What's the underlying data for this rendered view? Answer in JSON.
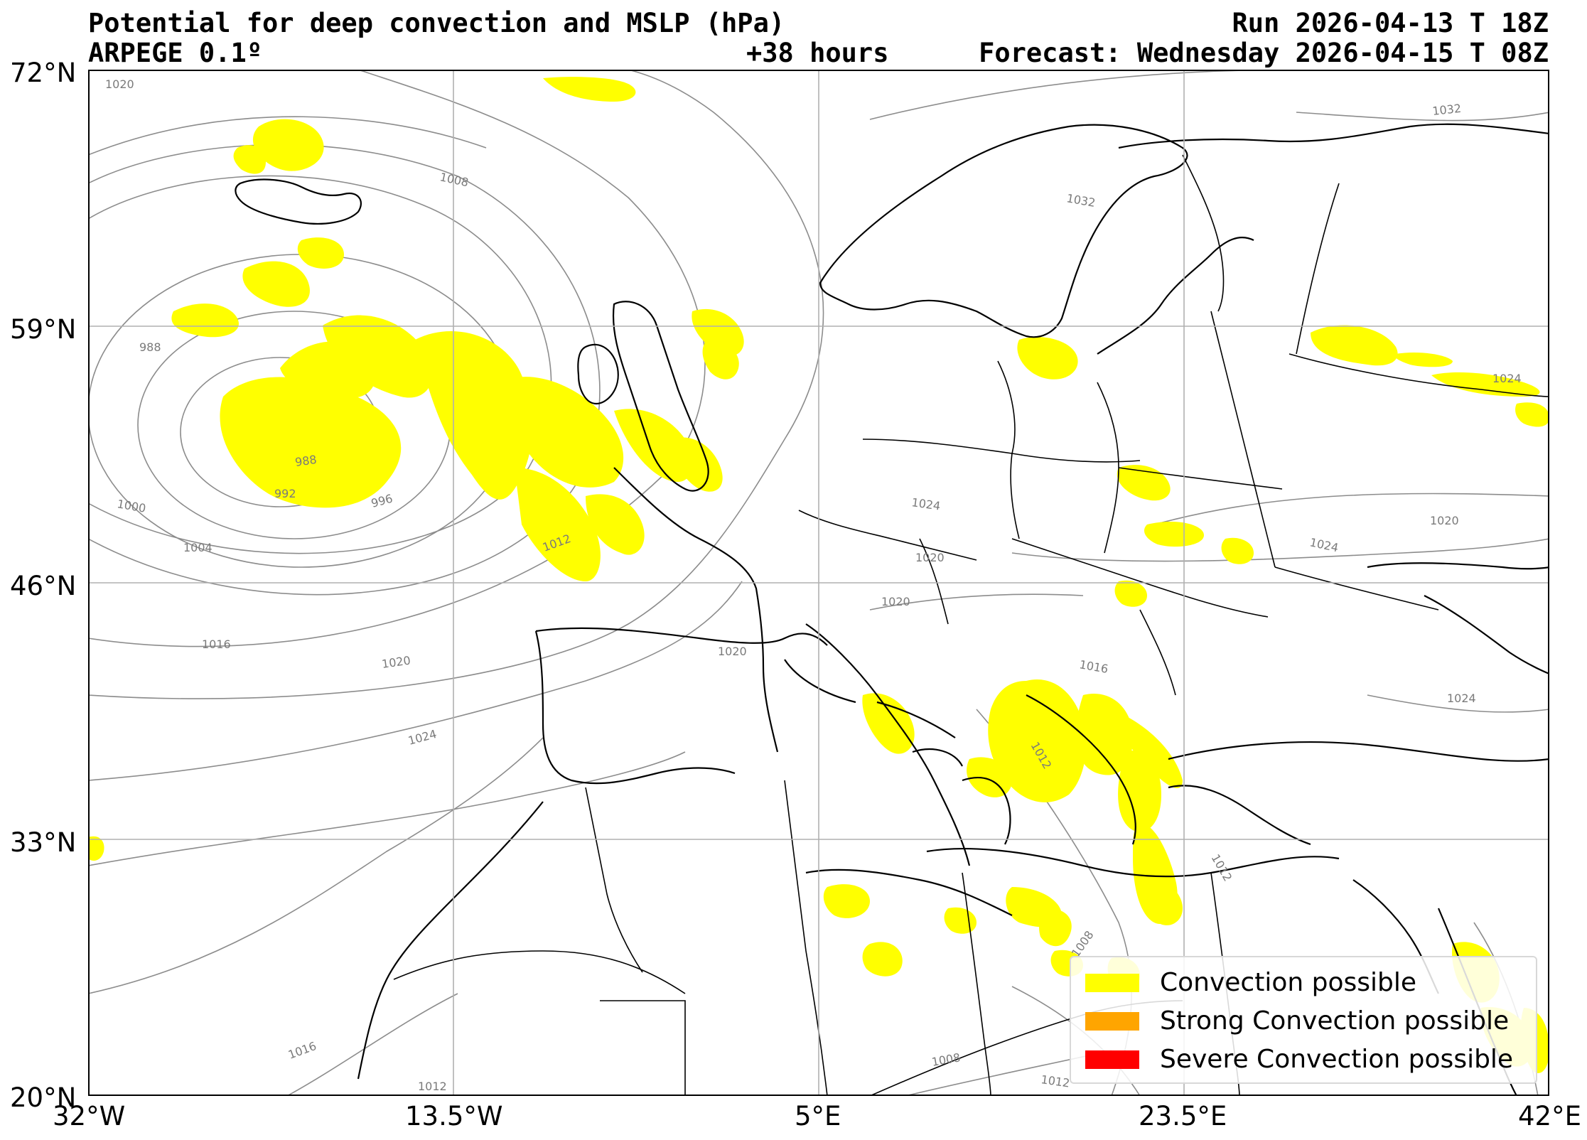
{
  "header": {
    "title_left": "Potential for deep convection and MSLP (hPa)",
    "subtitle_left": "ARPEGE 0.1º",
    "lead_time": "+38 hours",
    "run": "Run 2026-04-13 T 18Z",
    "forecast": "Forecast: Wednesday 2026-04-15 T 08Z"
  },
  "axes": {
    "lat_ticks": [
      "72°N",
      "59°N",
      "46°N",
      "33°N",
      "20°N"
    ],
    "lon_ticks": [
      "32°W",
      "13.5°W",
      "5°E",
      "23.5°E",
      "42°E"
    ]
  },
  "isobar_labels": [
    "1020",
    "1008",
    "988",
    "988",
    "992",
    "996",
    "1000",
    "1004",
    "1012",
    "1016",
    "1020",
    "1024",
    "1016",
    "1012",
    "1032",
    "1032",
    "1024",
    "1024",
    "1020",
    "1024",
    "1020",
    "1020",
    "1020",
    "1016",
    "1024",
    "1012",
    "1012",
    "1008",
    "1008",
    "1012"
  ],
  "legend": {
    "items": [
      {
        "label": "Convection possible",
        "color": "#ffff00"
      },
      {
        "label": "Strong Convection possible",
        "color": "#ffa500"
      },
      {
        "label": "Severe Convection possible",
        "color": "#ff0000"
      }
    ]
  },
  "colors": {
    "convection": "#ffff00",
    "isobar": "#8c8c8c",
    "coast": "#000000",
    "grid": "#b0b0b0"
  }
}
